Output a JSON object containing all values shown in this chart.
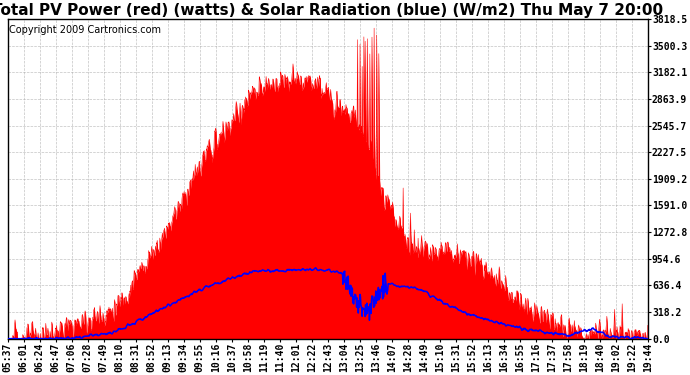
{
  "title": "Total PV Power (red) (watts) & Solar Radiation (blue) (W/m2) Thu May 7 20:00",
  "copyright_text": "Copyright 2009 Cartronics.com",
  "bg_color": "#ffffff",
  "plot_bg_color": "#ffffff",
  "grid_color": "#aaaaaa",
  "yticks": [
    0.0,
    318.2,
    636.4,
    954.6,
    1272.8,
    1591.0,
    1909.2,
    2227.5,
    2545.7,
    2863.9,
    3182.1,
    3500.3,
    3818.5
  ],
  "ymax": 3818.5,
  "ymin": 0.0,
  "x_labels": [
    "05:37",
    "06:01",
    "06:24",
    "06:47",
    "07:06",
    "07:28",
    "07:49",
    "08:10",
    "08:31",
    "08:52",
    "09:13",
    "09:34",
    "09:55",
    "10:16",
    "10:37",
    "10:58",
    "11:19",
    "11:40",
    "12:01",
    "12:22",
    "12:43",
    "13:04",
    "13:25",
    "13:46",
    "14:07",
    "14:28",
    "14:49",
    "15:10",
    "15:31",
    "15:52",
    "16:13",
    "16:34",
    "16:55",
    "17:16",
    "17:37",
    "17:58",
    "18:19",
    "18:40",
    "19:02",
    "19:22",
    "19:44"
  ],
  "red_color": "#ff0000",
  "blue_color": "#0000ff",
  "title_fontsize": 11,
  "tick_fontsize": 7,
  "copyright_fontsize": 7
}
